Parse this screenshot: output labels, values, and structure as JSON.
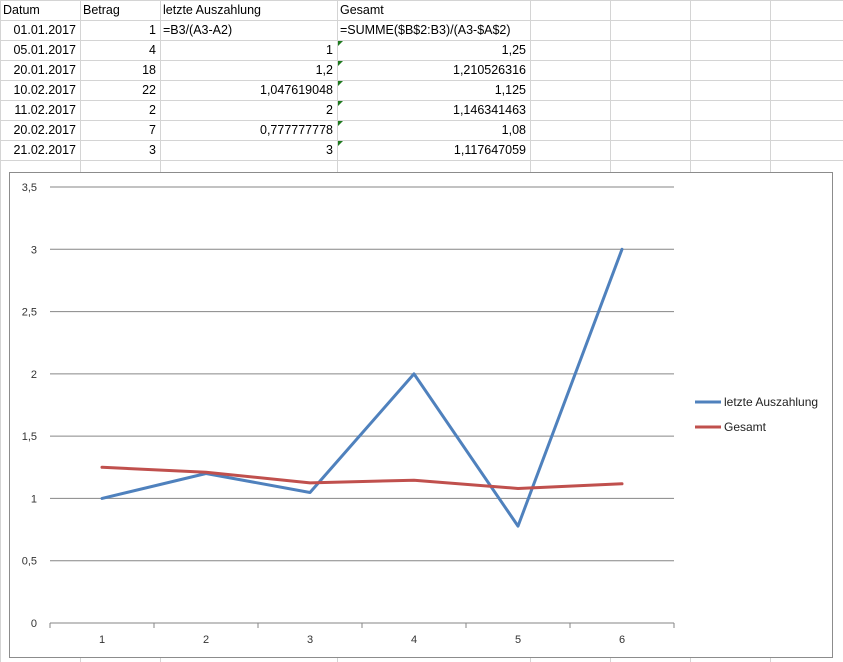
{
  "sheet": {
    "headers": [
      "Datum",
      "Betrag",
      "letzte Auszahlung",
      "Gesamt"
    ],
    "rows": [
      [
        "01.01.2017",
        "1",
        "=B3/(A3-A2)",
        "=SUMME($B$2:B3)/(A3-$A$2)"
      ],
      [
        "05.01.2017",
        "4",
        "1",
        "1,25"
      ],
      [
        "20.01.2017",
        "18",
        "1,2",
        "1,210526316"
      ],
      [
        "10.02.2017",
        "22",
        "1,047619048",
        "1,125"
      ],
      [
        "11.02.2017",
        "2",
        "2",
        "1,146341463"
      ],
      [
        "20.02.2017",
        "7",
        "0,777777778",
        "1,08"
      ],
      [
        "21.02.2017",
        "3",
        "3",
        "1,117647059"
      ]
    ],
    "error_flag_color": "#1e7a1e"
  },
  "chart_data": {
    "type": "line",
    "categories": [
      "1",
      "2",
      "3",
      "4",
      "5",
      "6"
    ],
    "series": [
      {
        "name": "letzte Auszahlung",
        "color": "#4f81bd",
        "values": [
          1,
          1.2,
          1.047619048,
          2,
          0.777777778,
          3
        ]
      },
      {
        "name": "Gesamt",
        "color": "#c0504d",
        "values": [
          1.25,
          1.210526316,
          1.125,
          1.146341463,
          1.08,
          1.117647059
        ]
      }
    ],
    "ylim": [
      0,
      3.5
    ],
    "ytick_labels": [
      "0",
      "0,5",
      "1",
      "1,5",
      "2",
      "2,5",
      "3",
      "3,5"
    ],
    "grid": "horizontal",
    "legend_position": "right"
  }
}
